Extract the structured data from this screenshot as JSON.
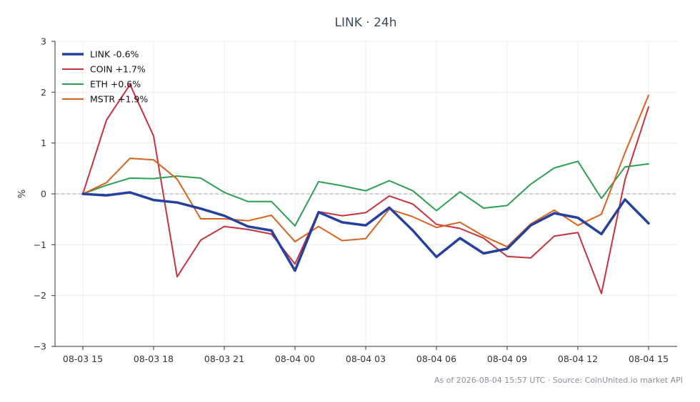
{
  "chart_data": {
    "type": "line",
    "title": "LINK · 24h",
    "ylabel": "%",
    "xlabel": "",
    "ylim": [
      -3,
      3
    ],
    "yticks": [
      3,
      2,
      1,
      0,
      -1,
      -2,
      -3
    ],
    "ytick_labels": [
      "3",
      "2",
      "1",
      "0",
      "−1",
      "−2",
      "−3"
    ],
    "x": [
      "08-03 15:00",
      "08-03 16:00",
      "08-03 17:00",
      "08-03 18:00",
      "08-03 19:00",
      "08-03 20:00",
      "08-03 21:00",
      "08-03 22:00",
      "08-03 23:00",
      "08-04 00:00",
      "08-04 01:00",
      "08-04 02:00",
      "08-04 03:00",
      "08-04 04:00",
      "08-04 05:00",
      "08-04 06:00",
      "08-04 07:00",
      "08-04 08:00",
      "08-04 09:00",
      "08-04 10:00",
      "08-04 11:00",
      "08-04 12:00",
      "08-04 13:00",
      "08-04 14:00",
      "08-04 15:00"
    ],
    "xticks": [
      "08-03 15",
      "08-03 18",
      "08-03 21",
      "08-04 00",
      "08-04 03",
      "08-04 06",
      "08-04 09",
      "08-04 12",
      "08-04 15"
    ],
    "xtick_index": [
      0,
      3,
      6,
      9,
      12,
      15,
      18,
      21,
      24
    ],
    "grid": true,
    "zero_line": true,
    "legend_position": "top-left",
    "series": [
      {
        "name": "LINK -0.6%",
        "color": "#2541a0",
        "bold": true,
        "values": [
          0,
          -0.03,
          0.03,
          -0.12,
          -0.17,
          -0.29,
          -0.43,
          -0.64,
          -0.72,
          -1.51,
          -0.36,
          -0.56,
          -0.62,
          -0.27,
          -0.72,
          -1.24,
          -0.87,
          -1.17,
          -1.08,
          -0.62,
          -0.38,
          -0.47,
          -0.79,
          -0.11,
          -0.58
        ]
      },
      {
        "name": "COIN +1.7%",
        "color": "#c8323a",
        "bold": false,
        "values": [
          0,
          1.45,
          2.15,
          1.14,
          -1.63,
          -0.91,
          -0.64,
          -0.7,
          -0.79,
          -1.38,
          -0.35,
          -0.43,
          -0.37,
          -0.04,
          -0.2,
          -0.6,
          -0.68,
          -0.87,
          -1.23,
          -1.26,
          -0.83,
          -0.76,
          -1.96,
          0.28,
          1.71
        ]
      },
      {
        "name": "ETH +0.6%",
        "color": "#2ca050",
        "bold": false,
        "values": [
          0,
          0.17,
          0.31,
          0.3,
          0.35,
          0.31,
          0.03,
          -0.15,
          -0.15,
          -0.63,
          0.24,
          0.16,
          0.06,
          0.26,
          0.06,
          -0.33,
          0.04,
          -0.28,
          -0.23,
          0.19,
          0.51,
          0.64,
          -0.09,
          0.53,
          0.59
        ]
      },
      {
        "name": "MSTR +1.9%",
        "color": "#d8621e",
        "bold": false,
        "values": [
          0,
          0.22,
          0.7,
          0.67,
          0.29,
          -0.49,
          -0.49,
          -0.53,
          -0.42,
          -0.94,
          -0.64,
          -0.92,
          -0.88,
          -0.3,
          -0.45,
          -0.66,
          -0.56,
          -0.83,
          -1.04,
          -0.59,
          -0.32,
          -0.62,
          -0.4,
          0.81,
          1.94
        ]
      }
    ]
  },
  "footer": "As of 2026-08-04 15:57 UTC · Source: CoinUnited.io market API"
}
